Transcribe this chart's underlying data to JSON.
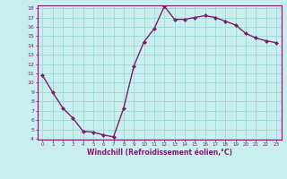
{
  "x": [
    0,
    1,
    2,
    3,
    4,
    5,
    6,
    7,
    8,
    9,
    10,
    11,
    12,
    13,
    14,
    15,
    16,
    17,
    18,
    19,
    20,
    21,
    22,
    23
  ],
  "y": [
    10.8,
    9.0,
    7.3,
    6.2,
    4.8,
    4.7,
    4.4,
    4.2,
    7.3,
    11.8,
    14.4,
    15.8,
    18.2,
    16.8,
    16.8,
    17.0,
    17.2,
    17.0,
    16.6,
    16.2,
    15.3,
    14.8,
    14.5,
    14.3
  ],
  "xlabel": "Windchill (Refroidissement éolien,°C)",
  "line_color": "#7B1F6A",
  "marker_color": "#7B1F6A",
  "bg_color": "#c8eeed",
  "grid_color": "#a0d8d8",
  "axis_color": "#7B1F6A",
  "tick_color": "#7B1F6A",
  "ylim": [
    4,
    18
  ],
  "xlim": [
    -0.5,
    23.5
  ],
  "yticks": [
    4,
    5,
    6,
    7,
    8,
    9,
    10,
    11,
    12,
    13,
    14,
    15,
    16,
    17,
    18
  ],
  "xticks": [
    0,
    1,
    2,
    3,
    4,
    5,
    6,
    7,
    8,
    9,
    10,
    11,
    12,
    13,
    14,
    15,
    16,
    17,
    18,
    19,
    20,
    21,
    22,
    23
  ]
}
